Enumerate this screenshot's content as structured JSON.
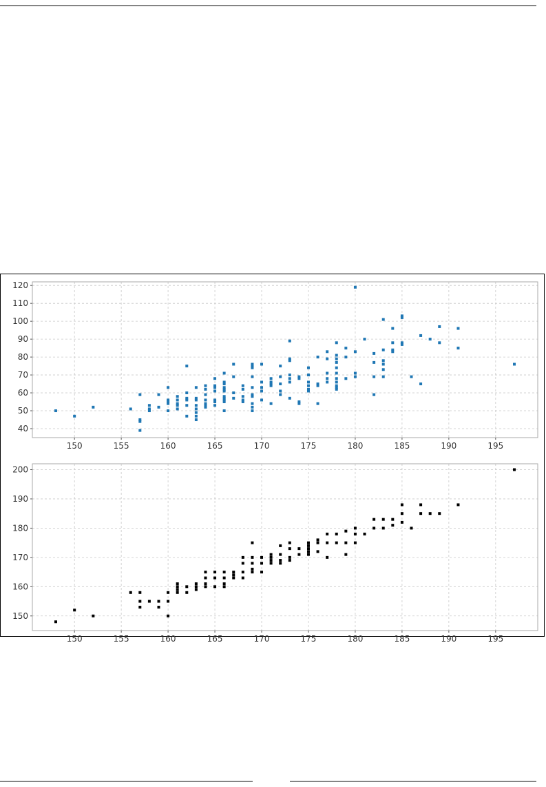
{
  "chart_data": [
    {
      "type": "scatter",
      "grid": true,
      "xlim": [
        145.5,
        199.5
      ],
      "ylim": [
        35,
        122
      ],
      "xticks": [
        150,
        155,
        160,
        165,
        170,
        175,
        180,
        185,
        190,
        195
      ],
      "yticks": [
        40,
        50,
        60,
        70,
        80,
        90,
        100,
        110,
        120
      ],
      "marker_color": "#1f77b4",
      "points": [
        [
          148,
          50
        ],
        [
          150,
          47
        ],
        [
          152,
          52
        ],
        [
          156,
          51
        ],
        [
          157,
          59
        ],
        [
          157,
          45
        ],
        [
          157,
          44
        ],
        [
          157,
          39
        ],
        [
          158,
          53
        ],
        [
          158,
          51
        ],
        [
          158,
          50
        ],
        [
          159,
          59
        ],
        [
          159,
          52
        ],
        [
          160,
          63
        ],
        [
          160,
          56
        ],
        [
          160,
          55
        ],
        [
          160,
          54
        ],
        [
          160,
          50
        ],
        [
          161,
          58
        ],
        [
          161,
          56
        ],
        [
          161,
          54
        ],
        [
          161,
          53
        ],
        [
          161,
          51
        ],
        [
          162,
          75
        ],
        [
          162,
          60
        ],
        [
          162,
          57
        ],
        [
          162,
          56
        ],
        [
          162,
          53
        ],
        [
          162,
          47
        ],
        [
          163,
          63
        ],
        [
          163,
          57
        ],
        [
          163,
          56
        ],
        [
          163,
          53
        ],
        [
          163,
          51
        ],
        [
          163,
          49
        ],
        [
          163,
          47
        ],
        [
          163,
          45
        ],
        [
          164,
          64
        ],
        [
          164,
          62
        ],
        [
          164,
          59
        ],
        [
          164,
          56
        ],
        [
          164,
          54
        ],
        [
          164,
          53
        ],
        [
          164,
          52
        ],
        [
          165,
          68
        ],
        [
          165,
          64
        ],
        [
          165,
          63
        ],
        [
          165,
          61
        ],
        [
          165,
          56
        ],
        [
          165,
          55
        ],
        [
          165,
          53
        ],
        [
          166,
          71
        ],
        [
          166,
          66
        ],
        [
          166,
          65
        ],
        [
          166,
          63
        ],
        [
          166,
          62
        ],
        [
          166,
          61
        ],
        [
          166,
          58
        ],
        [
          166,
          57
        ],
        [
          166,
          56
        ],
        [
          166,
          55
        ],
        [
          166,
          50
        ],
        [
          167,
          76
        ],
        [
          167,
          69
        ],
        [
          167,
          60
        ],
        [
          167,
          57
        ],
        [
          168,
          64
        ],
        [
          168,
          62
        ],
        [
          168,
          58
        ],
        [
          168,
          56
        ],
        [
          168,
          55
        ],
        [
          169,
          76
        ],
        [
          169,
          75
        ],
        [
          169,
          74
        ],
        [
          169,
          69
        ],
        [
          169,
          63
        ],
        [
          169,
          59
        ],
        [
          169,
          58
        ],
        [
          169,
          54
        ],
        [
          169,
          52
        ],
        [
          169,
          50
        ],
        [
          170,
          76
        ],
        [
          170,
          66
        ],
        [
          170,
          63
        ],
        [
          170,
          61
        ],
        [
          170,
          56
        ],
        [
          171,
          68
        ],
        [
          171,
          66
        ],
        [
          171,
          65
        ],
        [
          171,
          64
        ],
        [
          171,
          54
        ],
        [
          172,
          75
        ],
        [
          172,
          69
        ],
        [
          172,
          65
        ],
        [
          172,
          61
        ],
        [
          172,
          59
        ],
        [
          173,
          89
        ],
        [
          173,
          79
        ],
        [
          173,
          78
        ],
        [
          173,
          70
        ],
        [
          173,
          68
        ],
        [
          173,
          66
        ],
        [
          173,
          57
        ],
        [
          174,
          69
        ],
        [
          174,
          68
        ],
        [
          174,
          55
        ],
        [
          174,
          54
        ],
        [
          175,
          74
        ],
        [
          175,
          70
        ],
        [
          175,
          66
        ],
        [
          175,
          64
        ],
        [
          175,
          62
        ],
        [
          175,
          61
        ],
        [
          176,
          80
        ],
        [
          176,
          65
        ],
        [
          176,
          64
        ],
        [
          176,
          54
        ],
        [
          177,
          83
        ],
        [
          177,
          79
        ],
        [
          177,
          71
        ],
        [
          177,
          68
        ],
        [
          177,
          66
        ],
        [
          178,
          88
        ],
        [
          178,
          81
        ],
        [
          178,
          79
        ],
        [
          178,
          77
        ],
        [
          178,
          74
        ],
        [
          178,
          71
        ],
        [
          178,
          68
        ],
        [
          178,
          66
        ],
        [
          178,
          64
        ],
        [
          178,
          63
        ],
        [
          178,
          62
        ],
        [
          179,
          85
        ],
        [
          179,
          80
        ],
        [
          179,
          68
        ],
        [
          180,
          119
        ],
        [
          180,
          83
        ],
        [
          180,
          71
        ],
        [
          180,
          69
        ],
        [
          181,
          90
        ],
        [
          182,
          82
        ],
        [
          182,
          77
        ],
        [
          182,
          69
        ],
        [
          182,
          59
        ],
        [
          183,
          101
        ],
        [
          183,
          84
        ],
        [
          183,
          78
        ],
        [
          183,
          76
        ],
        [
          183,
          73
        ],
        [
          183,
          69
        ],
        [
          184,
          96
        ],
        [
          184,
          88
        ],
        [
          184,
          84
        ],
        [
          184,
          83
        ],
        [
          185,
          103
        ],
        [
          185,
          102
        ],
        [
          185,
          88
        ],
        [
          185,
          87
        ],
        [
          186,
          69
        ],
        [
          187,
          92
        ],
        [
          187,
          65
        ],
        [
          188,
          90
        ],
        [
          189,
          97
        ],
        [
          189,
          88
        ],
        [
          191,
          96
        ],
        [
          191,
          85
        ],
        [
          197,
          76
        ]
      ]
    },
    {
      "type": "scatter",
      "grid": true,
      "xlim": [
        145.5,
        199.5
      ],
      "ylim": [
        145,
        202
      ],
      "xticks": [
        150,
        155,
        160,
        165,
        170,
        175,
        180,
        185,
        190,
        195
      ],
      "yticks": [
        150,
        160,
        170,
        180,
        190,
        200
      ],
      "marker_color": "#000000",
      "points": [
        [
          148,
          148
        ],
        [
          150,
          152
        ],
        [
          152,
          150
        ],
        [
          156,
          158
        ],
        [
          157,
          158
        ],
        [
          157,
          155
        ],
        [
          157,
          153
        ],
        [
          158,
          155
        ],
        [
          159,
          155
        ],
        [
          159,
          153
        ],
        [
          160,
          158
        ],
        [
          160,
          155
        ],
        [
          160,
          150
        ],
        [
          161,
          161
        ],
        [
          161,
          160
        ],
        [
          161,
          159
        ],
        [
          161,
          158
        ],
        [
          162,
          160
        ],
        [
          162,
          158
        ],
        [
          163,
          161
        ],
        [
          163,
          160
        ],
        [
          163,
          159
        ],
        [
          164,
          165
        ],
        [
          164,
          163
        ],
        [
          164,
          161
        ],
        [
          164,
          160
        ],
        [
          165,
          165
        ],
        [
          165,
          163
        ],
        [
          165,
          160
        ],
        [
          166,
          165
        ],
        [
          166,
          163
        ],
        [
          166,
          161
        ],
        [
          166,
          160
        ],
        [
          167,
          165
        ],
        [
          167,
          164
        ],
        [
          167,
          163
        ],
        [
          168,
          170
        ],
        [
          168,
          168
        ],
        [
          168,
          165
        ],
        [
          168,
          163
        ],
        [
          169,
          175
        ],
        [
          169,
          170
        ],
        [
          169,
          168
        ],
        [
          169,
          166
        ],
        [
          169,
          165
        ],
        [
          170,
          170
        ],
        [
          170,
          168
        ],
        [
          170,
          165
        ],
        [
          171,
          171
        ],
        [
          171,
          170
        ],
        [
          171,
          169
        ],
        [
          171,
          168
        ],
        [
          172,
          174
        ],
        [
          172,
          171
        ],
        [
          172,
          169
        ],
        [
          172,
          168
        ],
        [
          173,
          175
        ],
        [
          173,
          173
        ],
        [
          173,
          170
        ],
        [
          173,
          169
        ],
        [
          174,
          173
        ],
        [
          174,
          171
        ],
        [
          175,
          175
        ],
        [
          175,
          174
        ],
        [
          175,
          173
        ],
        [
          175,
          172
        ],
        [
          175,
          171
        ],
        [
          176,
          176
        ],
        [
          176,
          175
        ],
        [
          176,
          172
        ],
        [
          177,
          178
        ],
        [
          177,
          175
        ],
        [
          177,
          170
        ],
        [
          178,
          178
        ],
        [
          178,
          175
        ],
        [
          179,
          179
        ],
        [
          179,
          175
        ],
        [
          179,
          171
        ],
        [
          180,
          180
        ],
        [
          180,
          178
        ],
        [
          180,
          175
        ],
        [
          181,
          178
        ],
        [
          182,
          183
        ],
        [
          182,
          180
        ],
        [
          183,
          183
        ],
        [
          183,
          180
        ],
        [
          184,
          183
        ],
        [
          184,
          181
        ],
        [
          185,
          188
        ],
        [
          185,
          185
        ],
        [
          185,
          182
        ],
        [
          186,
          180
        ],
        [
          187,
          188
        ],
        [
          187,
          185
        ],
        [
          188,
          185
        ],
        [
          189,
          185
        ],
        [
          191,
          188
        ],
        [
          197,
          200
        ]
      ]
    }
  ]
}
